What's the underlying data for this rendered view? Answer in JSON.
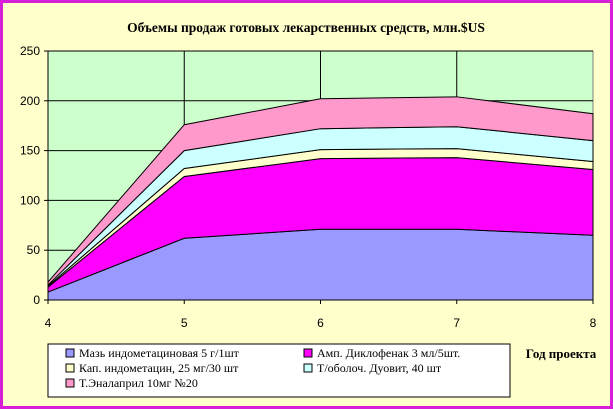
{
  "chart_data": {
    "type": "area",
    "stacked": true,
    "title": "Объемы продаж готовых лекарственных средств, млн.$US",
    "xlabel": "Год проекта",
    "ylabel": "",
    "x": [
      4,
      5,
      6,
      7,
      8
    ],
    "x_tick_labels": [
      "4",
      "5",
      "6",
      "7",
      "8"
    ],
    "ylim": [
      0,
      250
    ],
    "y_ticks": [
      0,
      50,
      100,
      150,
      200,
      250
    ],
    "y_tick_labels": [
      "0",
      "50",
      "100",
      "150",
      "200",
      "250"
    ],
    "grid": true,
    "legend_position": "bottom",
    "plot_background": "#ccffcc",
    "series": [
      {
        "name": "Мазь индометациновая 5 г/1шт",
        "color": "#9999ff",
        "values": [
          8,
          62,
          71,
          71,
          65
        ]
      },
      {
        "name": "Амп. Диклофенак 3 мл/5шт.",
        "color": "#ff00ff",
        "values": [
          5,
          62,
          71,
          72,
          66
        ]
      },
      {
        "name": "Кап. индометацин, 25 мг/30 шт",
        "color": "#ffffcc",
        "values": [
          1,
          8,
          9,
          9,
          8
        ]
      },
      {
        "name": "Т/оболоч. Дуовит, 40 шт",
        "color": "#ccffff",
        "values": [
          1,
          18,
          21,
          22,
          21
        ]
      },
      {
        "name": "Т.Эналаприл 10мг №20",
        "color": "#ff99cc",
        "values": [
          3,
          26,
          30,
          30,
          27
        ]
      }
    ]
  }
}
